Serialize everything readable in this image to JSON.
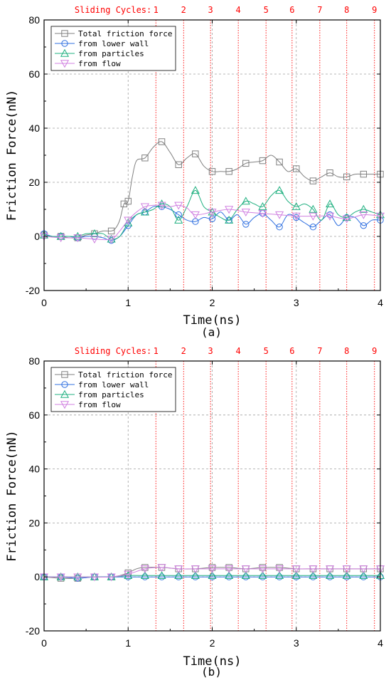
{
  "chart_data": [
    {
      "type": "line",
      "panel_label": "(a)",
      "xlabel": "Time(ns)",
      "ylabel": "Friction Force(nN)",
      "xlim": [
        0,
        4
      ],
      "ylim": [
        -20,
        80
      ],
      "xticks": [
        "0",
        "1",
        "2",
        "3",
        "4"
      ],
      "yticks": [
        "-20",
        "0",
        "20",
        "40",
        "60",
        "80"
      ],
      "grid": true,
      "legend_position": "top-left",
      "cycles_label": "Sliding Cycles:",
      "cycle_lines": [
        {
          "label": "1",
          "x": 1.33
        },
        {
          "label": "2",
          "x": 1.66
        },
        {
          "label": "3",
          "x": 1.98
        },
        {
          "label": "4",
          "x": 2.31
        },
        {
          "label": "5",
          "x": 2.64
        },
        {
          "label": "6",
          "x": 2.95
        },
        {
          "label": "7",
          "x": 3.28
        },
        {
          "label": "8",
          "x": 3.6
        },
        {
          "label": "9",
          "x": 3.93
        }
      ],
      "series": [
        {
          "name": "Total friction force",
          "color": "#808080",
          "marker": "square",
          "x": [
            0,
            0.1,
            0.2,
            0.3,
            0.4,
            0.5,
            0.6,
            0.7,
            0.8,
            0.85,
            0.9,
            0.95,
            1.0,
            1.05,
            1.1,
            1.2,
            1.3,
            1.4,
            1.5,
            1.6,
            1.7,
            1.8,
            1.9,
            2.0,
            2.1,
            2.2,
            2.3,
            2.4,
            2.5,
            2.6,
            2.7,
            2.8,
            2.9,
            3.0,
            3.1,
            3.2,
            3.3,
            3.4,
            3.5,
            3.6,
            3.7,
            3.8,
            3.9,
            4.0
          ],
          "y": [
            0.5,
            0,
            0,
            -0.5,
            -0.5,
            0.5,
            1,
            2,
            2,
            3,
            6,
            12,
            13,
            22,
            28,
            29,
            33,
            35,
            31,
            26.5,
            29,
            30.5,
            26,
            24,
            24,
            24,
            25,
            27,
            27.5,
            28,
            30,
            27.5,
            24,
            25,
            22,
            20.5,
            22,
            23.5,
            22,
            22,
            23,
            23,
            23,
            23
          ]
        },
        {
          "name": "from lower wall",
          "color": "#3070e0",
          "marker": "circle",
          "x": [
            0,
            0.1,
            0.2,
            0.3,
            0.4,
            0.5,
            0.6,
            0.7,
            0.8,
            0.9,
            1.0,
            1.1,
            1.2,
            1.3,
            1.4,
            1.5,
            1.6,
            1.7,
            1.8,
            1.9,
            2.0,
            2.1,
            2.2,
            2.3,
            2.4,
            2.5,
            2.6,
            2.7,
            2.8,
            2.9,
            3.0,
            3.1,
            3.2,
            3.3,
            3.4,
            3.5,
            3.6,
            3.7,
            3.8,
            3.9,
            4.0
          ],
          "y": [
            1,
            0,
            0,
            0,
            -0.5,
            0,
            0,
            -0.5,
            -1.5,
            0,
            4,
            8,
            9,
            11,
            11,
            10,
            8,
            6,
            5.5,
            7,
            6.5,
            9,
            6,
            8,
            4.5,
            7,
            8.5,
            6,
            3.5,
            8,
            7,
            5,
            3.5,
            6,
            8,
            4,
            7,
            7,
            4,
            6,
            6
          ]
        },
        {
          "name": "from particles",
          "color": "#20b080",
          "marker": "triangle-up",
          "x": [
            0,
            0.1,
            0.2,
            0.3,
            0.4,
            0.5,
            0.6,
            0.7,
            0.8,
            0.9,
            1.0,
            1.1,
            1.2,
            1.3,
            1.4,
            1.5,
            1.6,
            1.7,
            1.8,
            1.9,
            2.0,
            2.1,
            2.2,
            2.3,
            2.4,
            2.5,
            2.6,
            2.7,
            2.8,
            2.9,
            3.0,
            3.1,
            3.2,
            3.3,
            3.4,
            3.5,
            3.6,
            3.7,
            3.8,
            3.9,
            4.0
          ],
          "y": [
            0.5,
            0,
            0,
            0,
            0,
            1,
            1,
            1,
            -1,
            0,
            5,
            8,
            9,
            10,
            12,
            11,
            6,
            11,
            17,
            11,
            9,
            7,
            6,
            10,
            13,
            12,
            11,
            15,
            17,
            13,
            11,
            12,
            10,
            6,
            12,
            8,
            7,
            9,
            10,
            9,
            8
          ]
        },
        {
          "name": "from flow",
          "color": "#d080e0",
          "marker": "triangle-down",
          "x": [
            0,
            0.2,
            0.4,
            0.6,
            0.8,
            0.9,
            1.0,
            1.1,
            1.2,
            1.3,
            1.4,
            1.5,
            1.6,
            1.7,
            1.8,
            2.0,
            2.2,
            2.4,
            2.6,
            2.8,
            3.0,
            3.2,
            3.4,
            3.6,
            3.8,
            4.0
          ],
          "y": [
            0,
            -0.5,
            -0.5,
            -1,
            -1,
            2,
            6,
            9,
            11,
            11.5,
            11.5,
            11,
            11.5,
            10.5,
            8,
            9,
            10,
            9,
            8.5,
            8,
            7.5,
            7.5,
            7.5,
            6.5,
            8,
            7.5
          ]
        }
      ]
    },
    {
      "type": "line",
      "panel_label": "(b)",
      "xlabel": "Time(ns)",
      "ylabel": "Friction Force(nN)",
      "xlim": [
        0,
        4
      ],
      "ylim": [
        -20,
        80
      ],
      "xticks": [
        "0",
        "1",
        "2",
        "3",
        "4"
      ],
      "yticks": [
        "-20",
        "0",
        "20",
        "40",
        "60",
        "80"
      ],
      "grid": true,
      "legend_position": "top-left",
      "cycles_label": "Sliding Cycles:",
      "cycle_lines": [
        {
          "label": "1",
          "x": 1.33
        },
        {
          "label": "2",
          "x": 1.66
        },
        {
          "label": "3",
          "x": 1.98
        },
        {
          "label": "4",
          "x": 2.31
        },
        {
          "label": "5",
          "x": 2.64
        },
        {
          "label": "6",
          "x": 2.95
        },
        {
          "label": "7",
          "x": 3.28
        },
        {
          "label": "8",
          "x": 3.6
        },
        {
          "label": "9",
          "x": 3.93
        }
      ],
      "series": [
        {
          "name": "Total friction force",
          "color": "#808080",
          "marker": "square",
          "x": [
            0,
            0.2,
            0.4,
            0.6,
            0.8,
            0.9,
            1.0,
            1.1,
            1.2,
            1.4,
            1.6,
            1.8,
            2.0,
            2.2,
            2.4,
            2.6,
            2.8,
            3.0,
            3.2,
            3.4,
            3.6,
            3.8,
            4.0
          ],
          "y": [
            0,
            -0.5,
            -0.5,
            0,
            0,
            0.5,
            1.5,
            3,
            3.5,
            3.5,
            3,
            3,
            3.5,
            3.5,
            3,
            3.5,
            3.5,
            3,
            3,
            3,
            3,
            3,
            3
          ]
        },
        {
          "name": "from lower wall",
          "color": "#3070e0",
          "marker": "circle",
          "x": [
            0,
            0.2,
            0.4,
            0.6,
            0.8,
            1.0,
            1.2,
            1.4,
            1.6,
            1.8,
            2.0,
            2.2,
            2.4,
            2.6,
            2.8,
            3.0,
            3.2,
            3.4,
            3.6,
            3.8,
            4.0
          ],
          "y": [
            0,
            0,
            -0.5,
            0,
            0,
            0,
            0,
            0,
            0,
            0,
            0,
            0,
            0,
            0,
            0,
            0,
            0,
            0,
            0,
            0,
            0
          ]
        },
        {
          "name": "from particles",
          "color": "#20b080",
          "marker": "triangle-up",
          "x": [
            0,
            0.2,
            0.4,
            0.6,
            0.8,
            1.0,
            1.2,
            1.4,
            1.6,
            1.8,
            2.0,
            2.2,
            2.4,
            2.6,
            2.8,
            3.0,
            3.2,
            3.4,
            3.6,
            3.8,
            4.0
          ],
          "y": [
            0,
            0,
            0,
            0,
            0,
            0.5,
            0.5,
            0.5,
            0.5,
            0.5,
            0.5,
            0.5,
            0.5,
            0.5,
            0.5,
            0.5,
            0.5,
            0.5,
            0.5,
            0.5,
            0.5
          ]
        },
        {
          "name": "from flow",
          "color": "#d080e0",
          "marker": "triangle-down",
          "x": [
            0,
            0.2,
            0.4,
            0.6,
            0.8,
            1.0,
            1.2,
            1.4,
            1.6,
            1.8,
            2.0,
            2.2,
            2.4,
            2.6,
            2.8,
            3.0,
            3.2,
            3.4,
            3.6,
            3.8,
            4.0
          ],
          "y": [
            0,
            0,
            0,
            0,
            0,
            1,
            3,
            3.5,
            3,
            3,
            3,
            3,
            3,
            3,
            3,
            3,
            3,
            3,
            3,
            3,
            3
          ]
        }
      ]
    }
  ]
}
